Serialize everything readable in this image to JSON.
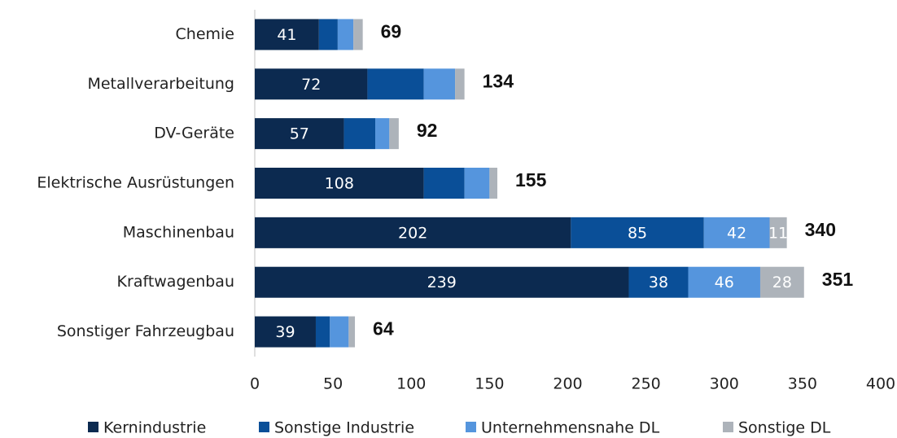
{
  "chart_data": {
    "type": "stacked_barh",
    "categories": [
      "Chemie",
      "Metallverarbeitung",
      "DV-Geräte",
      "Elektrische Ausrüstungen",
      "Maschinenbau",
      "Kraftwagenbau",
      "Sonstiger Fahrzeugbau"
    ],
    "series": [
      {
        "name": "Kernindustrie",
        "color": "#0c2a50",
        "values": [
          41,
          72,
          57,
          108,
          202,
          239,
          39
        ],
        "value_labels": [
          "41",
          "72",
          "57",
          "108",
          "202",
          "239",
          "39"
        ]
      },
      {
        "name": "Sonstige Industrie",
        "color": "#0a4f98",
        "values": [
          12,
          36,
          20,
          26,
          85,
          38,
          9
        ],
        "value_labels": [
          null,
          null,
          null,
          null,
          "85",
          "38",
          null
        ]
      },
      {
        "name": "Unternehmensnahe DL",
        "color": "#5595dd",
        "values": [
          10,
          20,
          9,
          16,
          42,
          46,
          12
        ],
        "value_labels": [
          null,
          null,
          null,
          null,
          "42",
          "46",
          null
        ]
      },
      {
        "name": "Sonstige DL",
        "color": "#adb3ba",
        "values": [
          6,
          6,
          6,
          5,
          11,
          28,
          4
        ],
        "value_labels": [
          null,
          null,
          null,
          null,
          "11",
          "28",
          null
        ]
      }
    ],
    "totals": [
      69,
      134,
      92,
      155,
      340,
      351,
      64
    ],
    "xlim": [
      0,
      400
    ],
    "xticks": [
      0,
      50,
      100,
      150,
      200,
      250,
      300,
      350,
      400
    ]
  }
}
